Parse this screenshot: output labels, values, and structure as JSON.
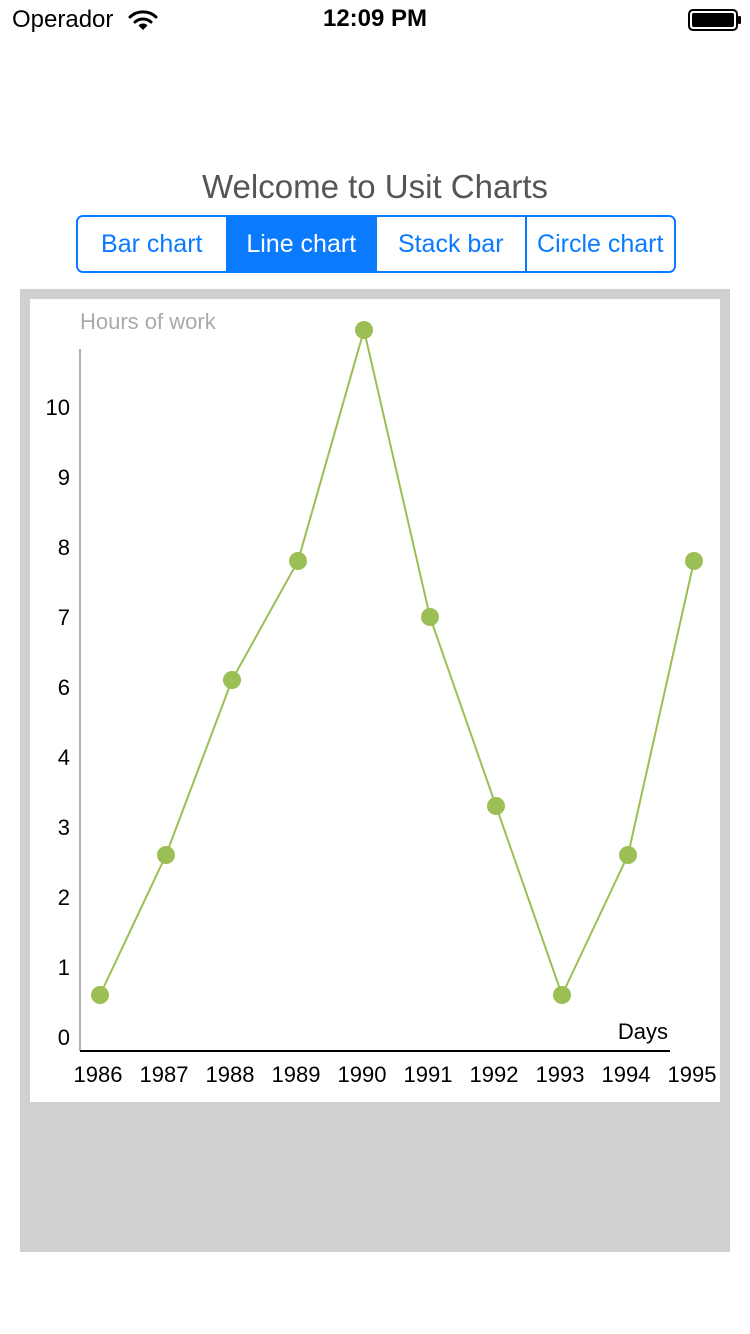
{
  "status_bar": {
    "carrier": "Operador",
    "time": "12:09 PM",
    "wifi_icon": "wifi-icon",
    "battery_icon": "battery-icon"
  },
  "header": {
    "title": "Welcome to Usit Charts"
  },
  "tabs": [
    {
      "label": "Bar chart",
      "selected": false
    },
    {
      "label": "Line chart",
      "selected": true
    },
    {
      "label": "Stack bar",
      "selected": false
    },
    {
      "label": "Circle chart",
      "selected": false
    }
  ],
  "colors": {
    "accent": "#0a7aff",
    "series": "#9bbf54",
    "panel_bg": "#d0d0d0"
  },
  "chart_data": {
    "type": "line",
    "title": "",
    "ylabel": "Hours of work",
    "xlabel": "Days",
    "categories": [
      "1986",
      "1987",
      "1988",
      "1989",
      "1990",
      "1991",
      "1992",
      "1993",
      "1994",
      "1995"
    ],
    "y_ticks": [
      "0",
      "1",
      "2",
      "3",
      "4",
      "6",
      "7",
      "8",
      "9",
      "10"
    ],
    "series": [
      {
        "values": [
          0.6,
          2.6,
          5.1,
          6.8,
          10.1,
          6.0,
          3.3,
          0.6,
          2.6,
          6.8
        ]
      }
    ],
    "grid": false,
    "legend": false
  }
}
